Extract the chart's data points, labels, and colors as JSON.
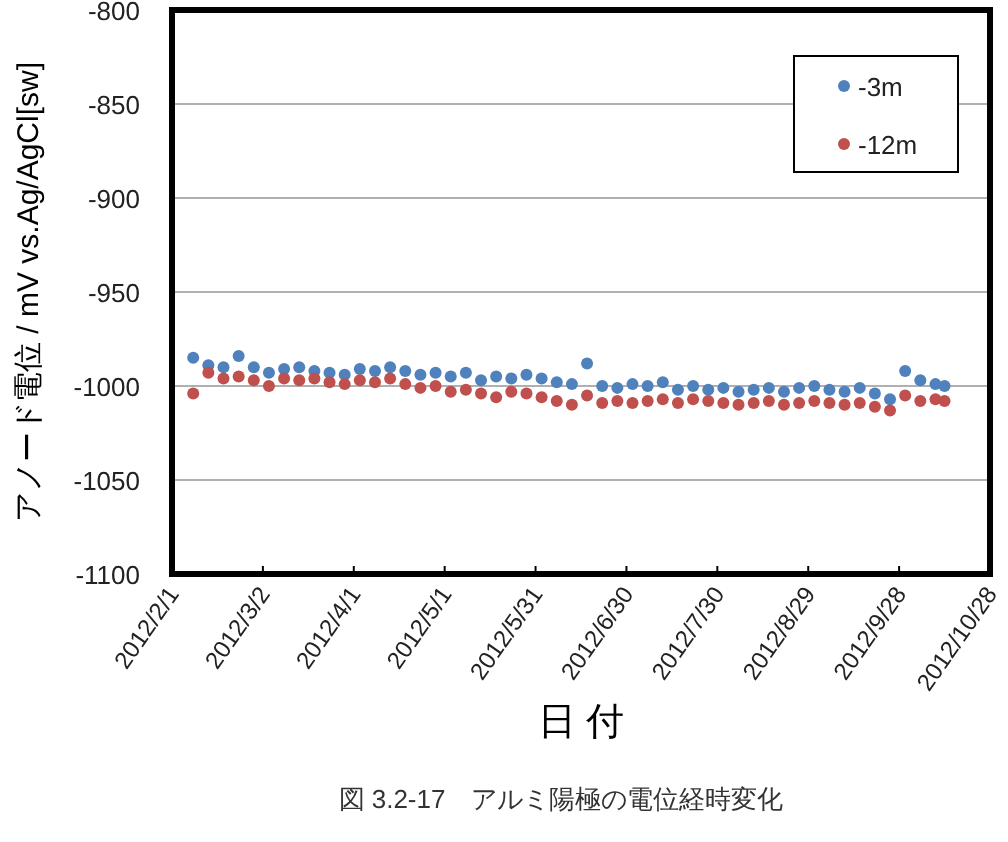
{
  "chart_data": {
    "type": "scatter",
    "xlabel": "日 付",
    "ylabel": "アノード電位 / mV vs.Ag/AgCl[sw]",
    "annotations": [
      "図 3.2-17　アルミ陽極の電位経時変化"
    ],
    "x": [
      "2012-02-08",
      "2012-02-13",
      "2012-02-18",
      "2012-02-23",
      "2012-02-28",
      "2012-03-04",
      "2012-03-09",
      "2012-03-14",
      "2012-03-19",
      "2012-03-24",
      "2012-03-29",
      "2012-04-03",
      "2012-04-08",
      "2012-04-13",
      "2012-04-18",
      "2012-04-23",
      "2012-04-28",
      "2012-05-03",
      "2012-05-08",
      "2012-05-13",
      "2012-05-18",
      "2012-05-23",
      "2012-05-28",
      "2012-06-02",
      "2012-06-07",
      "2012-06-12",
      "2012-06-17",
      "2012-06-22",
      "2012-06-27",
      "2012-07-02",
      "2012-07-07",
      "2012-07-12",
      "2012-07-17",
      "2012-07-22",
      "2012-07-27",
      "2012-08-01",
      "2012-08-06",
      "2012-08-11",
      "2012-08-16",
      "2012-08-21",
      "2012-08-26",
      "2012-08-31",
      "2012-09-05",
      "2012-09-10",
      "2012-09-15",
      "2012-09-20",
      "2012-09-25",
      "2012-09-30",
      "2012-10-05",
      "2012-10-10",
      "2012-10-13"
    ],
    "series": [
      {
        "name": "-3m",
        "color": "#4f81bd",
        "values": [
          -985,
          -989,
          -990,
          -984,
          -990,
          -993,
          -991,
          -990,
          -992,
          -993,
          -994,
          -991,
          -992,
          -990,
          -992,
          -994,
          -993,
          -995,
          -993,
          -997,
          -995,
          -996,
          -994,
          -996,
          -998,
          -999,
          -988,
          -1000,
          -1001,
          -999,
          -1000,
          -998,
          -1002,
          -1000,
          -1002,
          -1001,
          -1003,
          -1002,
          -1001,
          -1003,
          -1001,
          -1000,
          -1002,
          -1003,
          -1001,
          -1004,
          -1007,
          -992,
          -997,
          -999,
          -1000
        ]
      },
      {
        "name": "-12m",
        "color": "#c0504d",
        "values": [
          -1004,
          -993,
          -996,
          -995,
          -997,
          -1000,
          -996,
          -997,
          -996,
          -998,
          -999,
          -997,
          -998,
          -996,
          -999,
          -1001,
          -1000,
          -1003,
          -1002,
          -1004,
          -1006,
          -1003,
          -1004,
          -1006,
          -1008,
          -1010,
          -1005,
          -1009,
          -1008,
          -1009,
          -1008,
          -1007,
          -1009,
          -1007,
          -1008,
          -1009,
          -1010,
          -1009,
          -1008,
          -1010,
          -1009,
          -1008,
          -1009,
          -1010,
          -1009,
          -1011,
          -1013,
          -1005,
          -1008,
          -1007,
          -1008
        ]
      }
    ],
    "xlim": [
      "2012-02-01",
      "2012-10-28"
    ],
    "xticks": [
      {
        "value": "2012-02-01",
        "label": "2012/2/1"
      },
      {
        "value": "2012-03-02",
        "label": "2012/3/2"
      },
      {
        "value": "2012-04-01",
        "label": "2012/4/1"
      },
      {
        "value": "2012-05-01",
        "label": "2012/5/1"
      },
      {
        "value": "2012-05-31",
        "label": "2012/5/31"
      },
      {
        "value": "2012-06-30",
        "label": "2012/6/30"
      },
      {
        "value": "2012-07-30",
        "label": "2012/7/30"
      },
      {
        "value": "2012-08-29",
        "label": "2012/8/29"
      },
      {
        "value": "2012-09-28",
        "label": "2012/9/28"
      },
      {
        "value": "2012-10-28",
        "label": "2012/10/28"
      }
    ],
    "ylim": [
      -1100,
      -800
    ],
    "yticks": [
      -1100,
      -1050,
      -1000,
      -950,
      -900,
      -850,
      -800
    ],
    "grid": "y",
    "legend": "top right",
    "marker": "circle"
  }
}
